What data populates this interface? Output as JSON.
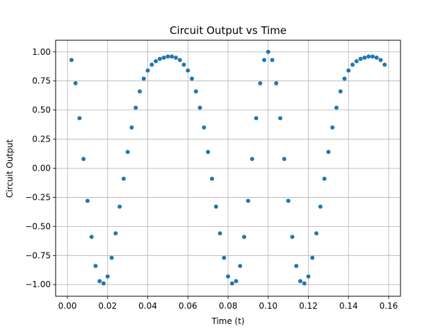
{
  "chart_data": {
    "type": "scatter",
    "title": "Circuit Output vs Time",
    "xlabel": "Time (t)",
    "ylabel": "Circuit Output",
    "xlim": [
      -0.0059,
      0.1659
    ],
    "ylim": [
      -1.1,
      1.1
    ],
    "xticks": [
      0.0,
      0.02,
      0.04,
      0.06,
      0.08,
      0.1,
      0.12,
      0.14,
      0.16
    ],
    "xtick_labels": [
      "0.00",
      "0.02",
      "0.04",
      "0.06",
      "0.08",
      "0.10",
      "0.12",
      "0.14",
      "0.16"
    ],
    "yticks": [
      -1.0,
      -0.75,
      -0.5,
      -0.25,
      0.0,
      0.25,
      0.5,
      0.75,
      1.0
    ],
    "ytick_labels": [
      "−1.00",
      "−0.75",
      "−0.50",
      "−0.25",
      "0.00",
      "0.25",
      "0.50",
      "0.75",
      "1.00"
    ],
    "grid": true,
    "colors": {
      "marker": "#1f77b4",
      "grid": "#b0b0b0"
    },
    "series": [
      {
        "x": [
          0.002,
          0.004,
          0.006,
          0.008,
          0.01,
          0.012,
          0.014,
          0.016,
          0.018,
          0.02,
          0.022,
          0.024,
          0.026,
          0.028,
          0.03,
          0.032,
          0.034,
          0.036,
          0.038,
          0.04,
          0.042,
          0.044,
          0.046,
          0.048,
          0.05,
          0.052,
          0.054,
          0.056,
          0.058,
          0.06,
          0.062,
          0.064,
          0.066,
          0.068,
          0.07,
          0.072,
          0.074,
          0.076,
          0.078,
          0.08,
          0.082,
          0.084,
          0.086,
          0.088,
          0.09,
          0.092,
          0.094,
          0.096,
          0.098,
          0.1,
          0.102,
          0.104,
          0.106,
          0.108,
          0.11,
          0.112,
          0.114,
          0.116,
          0.118,
          0.12,
          0.122,
          0.124,
          0.126,
          0.128,
          0.13,
          0.132,
          0.134,
          0.136,
          0.138,
          0.14,
          0.142,
          0.144,
          0.146,
          0.148,
          0.15,
          0.152,
          0.154,
          0.156,
          0.158
        ],
        "y": [
          0.93,
          0.73,
          0.43,
          0.08,
          -0.28,
          -0.59,
          -0.84,
          -0.97,
          -0.99,
          -0.93,
          -0.77,
          -0.56,
          -0.33,
          -0.09,
          0.14,
          0.35,
          0.52,
          0.66,
          0.77,
          0.84,
          0.89,
          0.92,
          0.94,
          0.95,
          0.96,
          0.96,
          0.95,
          0.93,
          0.89,
          0.84,
          0.77,
          0.66,
          0.52,
          0.35,
          0.14,
          -0.09,
          -0.33,
          -0.56,
          -0.77,
          -0.93,
          -0.99,
          -0.97,
          -0.84,
          -0.59,
          -0.28,
          0.08,
          0.43,
          0.73,
          0.93,
          1.0,
          0.93,
          0.73,
          0.43,
          0.08,
          -0.28,
          -0.59,
          -0.84,
          -0.97,
          -0.99,
          -0.93,
          -0.77,
          -0.56,
          -0.33,
          -0.09,
          0.14,
          0.35,
          0.52,
          0.66,
          0.77,
          0.84,
          0.89,
          0.92,
          0.94,
          0.95,
          0.96,
          0.96,
          0.95,
          0.93,
          0.89
        ]
      }
    ]
  }
}
